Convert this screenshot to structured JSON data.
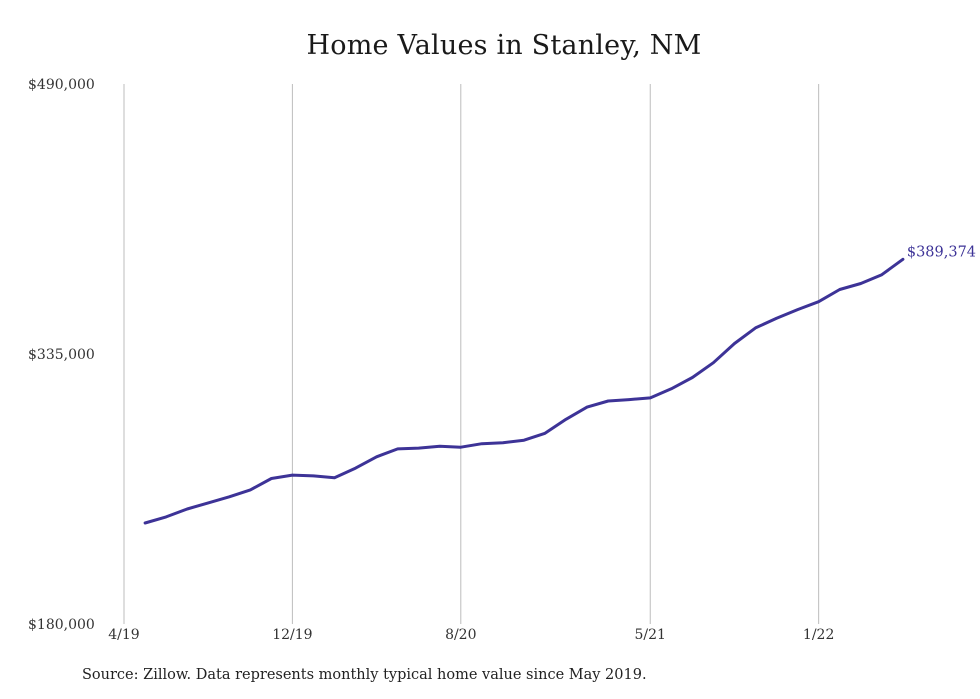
{
  "chart_data": {
    "type": "line",
    "title": "Home Values in Stanley, NM",
    "xlabel": "",
    "ylabel": "",
    "ylim": [
      180000,
      490000
    ],
    "yticks": [
      180000,
      335000,
      490000
    ],
    "ytick_labels": [
      "$180,000",
      "$335,000",
      "$490,000"
    ],
    "xticks": [
      "2019-04",
      "2019-12",
      "2020-08",
      "2021-05",
      "2022-01"
    ],
    "xtick_labels": [
      "4/19",
      "12/19",
      "8/20",
      "5/21",
      "1/22"
    ],
    "grid": "vertical",
    "legend": "none",
    "color": "#3d3397",
    "series": [
      {
        "x": [
          "2019-05",
          "2019-06",
          "2019-07",
          "2019-08",
          "2019-09",
          "2019-10",
          "2019-11",
          "2019-12",
          "2020-01",
          "2020-02",
          "2020-03",
          "2020-04",
          "2020-05",
          "2020-06",
          "2020-07",
          "2020-08",
          "2020-09",
          "2020-10",
          "2020-11",
          "2020-12",
          "2021-01",
          "2021-02",
          "2021-03",
          "2021-04",
          "2021-05",
          "2021-06",
          "2021-07",
          "2021-08",
          "2021-09",
          "2021-10",
          "2021-11",
          "2021-12",
          "2022-01",
          "2022-02",
          "2022-03",
          "2022-04",
          "2022-05"
        ],
        "values": [
          238000,
          241500,
          246000,
          249500,
          253000,
          257000,
          263500,
          265500,
          265000,
          264000,
          269500,
          276000,
          280500,
          281000,
          282000,
          281500,
          283500,
          284000,
          285500,
          289500,
          297500,
          304500,
          308000,
          308800,
          309800,
          315000,
          321500,
          330000,
          341000,
          350000,
          355500,
          360500,
          365000,
          372000,
          375500,
          380500,
          389374
        ]
      }
    ],
    "end_label": "$389,374"
  },
  "footer": {
    "source": "Source: Zillow. Data represents monthly typical home value since May 2019."
  }
}
